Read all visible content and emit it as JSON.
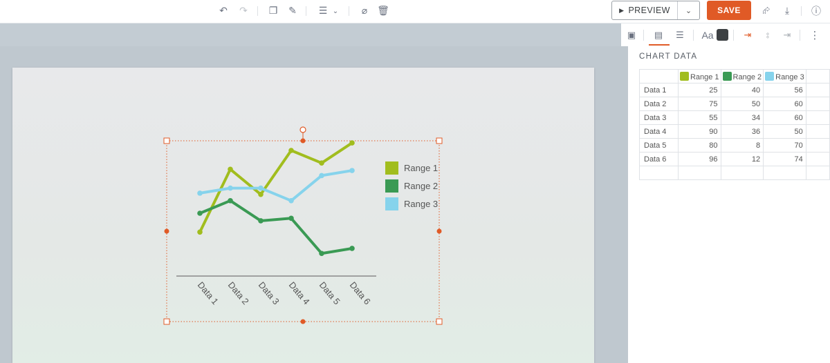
{
  "toolbar": {
    "preview_label": "PREVIEW",
    "save_label": "SAVE"
  },
  "design_tools": {
    "text_style_label": "Aa"
  },
  "panel": {
    "title": "CHART DATA",
    "columns": [
      "Range 1",
      "Range 2",
      "Range 3"
    ],
    "rows": [
      {
        "label": "Data 1",
        "values": [
          "25",
          "40",
          "56"
        ]
      },
      {
        "label": "Data 2",
        "values": [
          "75",
          "50",
          "60"
        ]
      },
      {
        "label": "Data 3",
        "values": [
          "55",
          "34",
          "60"
        ]
      },
      {
        "label": "Data 4",
        "values": [
          "90",
          "36",
          "50"
        ]
      },
      {
        "label": "Data 5",
        "values": [
          "80",
          "8",
          "70"
        ]
      },
      {
        "label": "Data 6",
        "values": [
          "96",
          "12",
          "74"
        ]
      }
    ]
  },
  "colors": {
    "accent": "#e05a26",
    "range1": "#a1bd1e",
    "range2": "#3a9a54",
    "range3": "#86d3ec"
  },
  "chart_data": {
    "type": "line",
    "categories": [
      "Data 1",
      "Data 2",
      "Data 3",
      "Data 4",
      "Data 5",
      "Data 6"
    ],
    "series": [
      {
        "name": "Range 1",
        "values": [
          25,
          75,
          55,
          90,
          80,
          96
        ],
        "color": "#a1bd1e"
      },
      {
        "name": "Range 2",
        "values": [
          40,
          50,
          34,
          36,
          8,
          12
        ],
        "color": "#3a9a54"
      },
      {
        "name": "Range 3",
        "values": [
          56,
          60,
          60,
          50,
          70,
          74
        ],
        "color": "#86d3ec"
      }
    ],
    "legend": "right",
    "grid": false,
    "ylim": [
      -10,
      100
    ]
  }
}
